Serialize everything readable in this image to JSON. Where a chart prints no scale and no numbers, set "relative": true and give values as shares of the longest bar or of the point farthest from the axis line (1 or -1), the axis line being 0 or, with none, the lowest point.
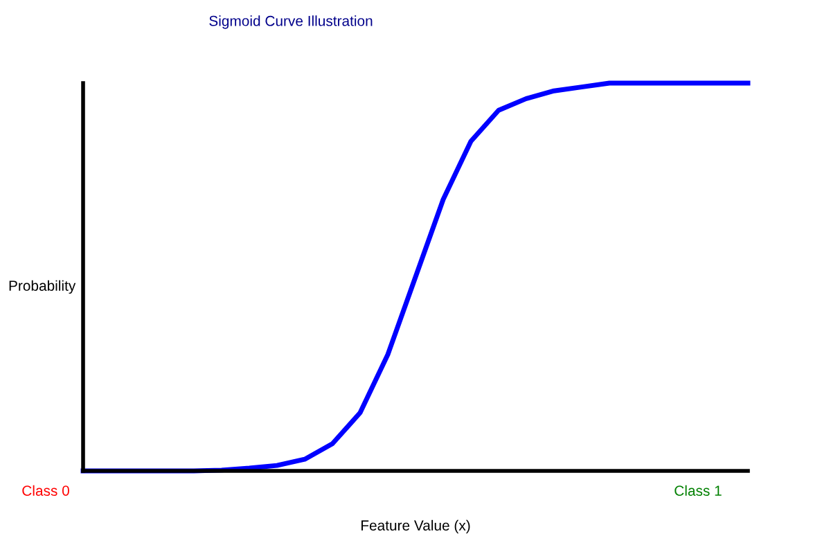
{
  "chart_data": {
    "type": "line",
    "title": "Sigmoid Curve Illustration",
    "xlabel": "Feature Value (x)",
    "ylabel": "Probability",
    "relative": true,
    "categories": [
      null,
      null,
      null,
      null,
      null,
      null,
      null,
      null,
      null,
      null,
      null,
      null,
      null,
      null,
      null,
      null,
      null,
      null,
      null,
      null,
      null,
      null,
      null,
      null,
      null
    ],
    "series": [
      {
        "color": "#0000ff",
        "values": [
          0,
          0,
          0,
          0,
          0,
          0.002,
          0.007,
          0.014,
          0.03,
          0.07,
          0.15,
          0.3,
          0.5,
          0.7,
          0.85,
          0.93,
          0.96,
          0.98,
          0.99,
          1,
          1,
          1,
          1,
          1,
          1
        ]
      }
    ],
    "annotations": [
      "Class 0",
      "Class 1"
    ],
    "grid": false,
    "legend": false,
    "marker": "none",
    "line_style": "solid"
  }
}
